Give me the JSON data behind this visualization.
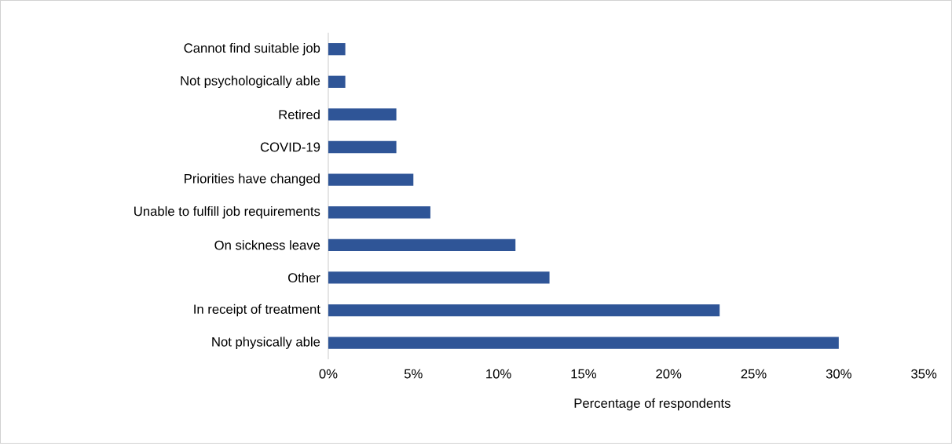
{
  "chart_data": {
    "type": "bar",
    "orientation": "horizontal",
    "xlabel": "Percentage of respondents",
    "categories": [
      "Cannot find suitable job",
      "Not psychologically able",
      "Retired",
      "COVID-19",
      "Priorities have changed",
      "Unable to fulfill job requirements",
      "On sickness leave",
      "Other",
      "In receipt of treatment",
      "Not physically able"
    ],
    "values": [
      1,
      1,
      4,
      4,
      5,
      6,
      11,
      13,
      23,
      30
    ],
    "color": "#2f5597",
    "xlim": [
      0,
      35
    ],
    "xticks": [
      {
        "value": 0,
        "label": "0%"
      },
      {
        "value": 5,
        "label": "5%"
      },
      {
        "value": 10,
        "label": "10%"
      },
      {
        "value": 15,
        "label": "15%"
      },
      {
        "value": 20,
        "label": "20%"
      },
      {
        "value": 25,
        "label": "25%"
      },
      {
        "value": 30,
        "label": "30%"
      },
      {
        "value": 35,
        "label": "35%"
      }
    ],
    "tick_labels": "xy"
  }
}
